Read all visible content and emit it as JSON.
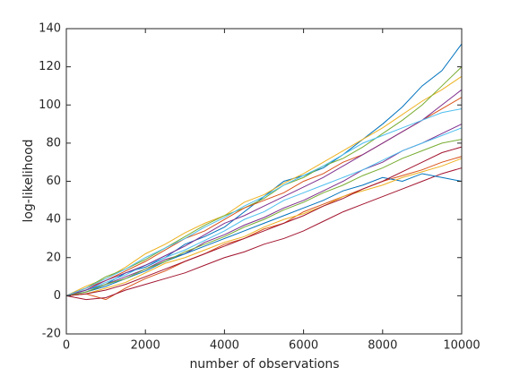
{
  "chart_data": {
    "type": "line",
    "xlabel": "number of observations",
    "ylabel": "log-likelihood",
    "xlim": [
      0,
      10000
    ],
    "ylim": [
      -20,
      140
    ],
    "xticks": [
      0,
      2000,
      4000,
      6000,
      8000,
      10000
    ],
    "yticks": [
      -20,
      0,
      20,
      40,
      60,
      80,
      100,
      120,
      140
    ],
    "grid": false,
    "x": [
      0,
      500,
      1000,
      1500,
      2000,
      2500,
      3000,
      3500,
      4000,
      4500,
      5000,
      5500,
      6000,
      6500,
      7000,
      7500,
      8000,
      8500,
      9000,
      9500,
      10000
    ],
    "series": [
      {
        "color": "#0072BD",
        "values": [
          0,
          3,
          6,
          12,
          15,
          20,
          27,
          31,
          36,
          44,
          52,
          60,
          63,
          67,
          74,
          82,
          90,
          99,
          110,
          118,
          132
        ]
      },
      {
        "color": "#D95319",
        "values": [
          0,
          1,
          -2,
          4,
          9,
          13,
          18,
          22,
          27,
          30,
          35,
          38,
          44,
          48,
          52,
          56,
          60,
          63,
          66,
          70,
          73
        ]
      },
      {
        "color": "#EDB120",
        "values": [
          0,
          5,
          9,
          15,
          22,
          27,
          33,
          38,
          42,
          49,
          53,
          59,
          64,
          70,
          76,
          82,
          88,
          95,
          102,
          108,
          115
        ]
      },
      {
        "color": "#7E2F8E",
        "values": [
          0,
          2,
          6,
          10,
          14,
          19,
          22,
          28,
          32,
          37,
          41,
          46,
          50,
          55,
          60,
          66,
          70,
          76,
          80,
          85,
          90
        ]
      },
      {
        "color": "#77AC30",
        "values": [
          0,
          4,
          10,
          14,
          19,
          25,
          31,
          37,
          42,
          46,
          51,
          58,
          62,
          68,
          72,
          78,
          85,
          92,
          100,
          110,
          120
        ]
      },
      {
        "color": "#4DBEEE",
        "values": [
          0,
          3,
          7,
          11,
          16,
          20,
          24,
          29,
          34,
          40,
          44,
          50,
          54,
          58,
          62,
          66,
          71,
          76,
          80,
          84,
          88
        ]
      },
      {
        "color": "#A2142F",
        "values": [
          0,
          -2,
          -1,
          3,
          6,
          9,
          12,
          16,
          20,
          23,
          27,
          30,
          34,
          39,
          44,
          48,
          52,
          56,
          60,
          64,
          67
        ]
      },
      {
        "color": "#0072BD",
        "values": [
          0,
          2,
          5,
          9,
          13,
          18,
          22,
          26,
          30,
          34,
          38,
          42,
          46,
          50,
          55,
          58,
          62,
          60,
          64,
          62,
          60
        ]
      },
      {
        "color": "#D95319",
        "values": [
          0,
          4,
          8,
          13,
          18,
          24,
          30,
          34,
          40,
          46,
          50,
          54,
          60,
          64,
          70,
          74,
          80,
          86,
          92,
          98,
          104
        ]
      },
      {
        "color": "#EDB120",
        "values": [
          0,
          1,
          4,
          7,
          12,
          17,
          20,
          24,
          28,
          31,
          36,
          40,
          43,
          47,
          52,
          55,
          58,
          62,
          65,
          68,
          72
        ]
      },
      {
        "color": "#7E2F8E",
        "values": [
          0,
          3,
          8,
          12,
          16,
          21,
          26,
          32,
          38,
          42,
          47,
          52,
          57,
          62,
          68,
          74,
          80,
          86,
          92,
          100,
          108
        ]
      },
      {
        "color": "#77AC30",
        "values": [
          0,
          2,
          6,
          9,
          14,
          18,
          23,
          27,
          31,
          36,
          40,
          45,
          49,
          54,
          58,
          63,
          67,
          72,
          76,
          80,
          82
        ]
      },
      {
        "color": "#4DBEEE",
        "values": [
          0,
          4,
          9,
          14,
          20,
          25,
          30,
          36,
          41,
          47,
          52,
          58,
          63,
          68,
          74,
          80,
          84,
          88,
          92,
          96,
          98
        ]
      },
      {
        "color": "#A2142F",
        "values": [
          0,
          1,
          3,
          6,
          10,
          14,
          18,
          22,
          26,
          30,
          34,
          38,
          42,
          47,
          51,
          56,
          60,
          65,
          70,
          75,
          78
        ]
      }
    ]
  }
}
